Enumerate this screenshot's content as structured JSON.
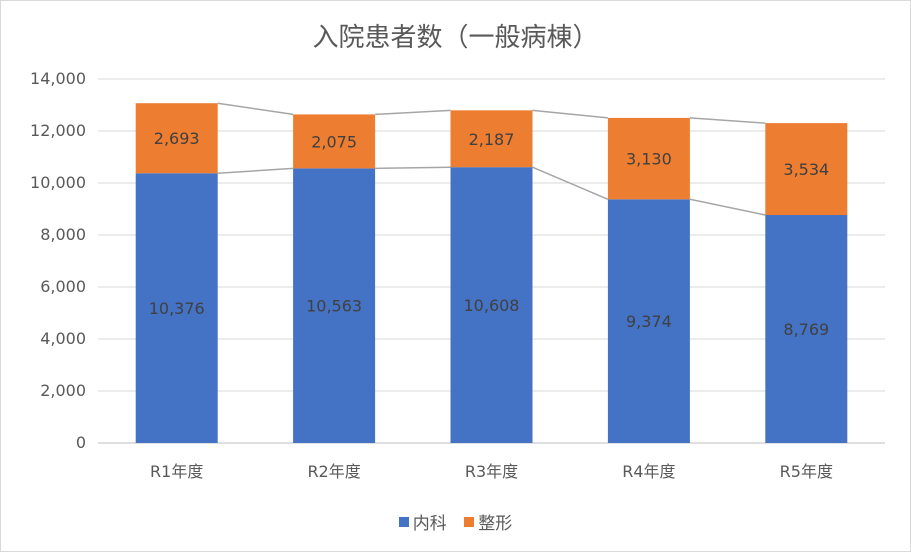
{
  "chart_data": {
    "type": "bar",
    "stacked": true,
    "title": "入院患者数（一般病棟）",
    "categories": [
      "R1年度",
      "R2年度",
      "R3年度",
      "R4年度",
      "R5年度"
    ],
    "series": [
      {
        "name": "内科",
        "values": [
          10376,
          10563,
          10608,
          9374,
          8769
        ],
        "labels": [
          "10,376",
          "10,563",
          "10,608",
          "9,374",
          "8,769"
        ],
        "color": "#4472c4"
      },
      {
        "name": "整形",
        "values": [
          2693,
          2075,
          2187,
          3130,
          3534
        ],
        "labels": [
          "2,693",
          "2,075",
          "2,187",
          "3,130",
          "3,534"
        ],
        "color": "#ed7d31"
      }
    ],
    "ylim": [
      0,
      14000
    ],
    "yticks": [
      0,
      2000,
      4000,
      6000,
      8000,
      10000,
      12000,
      14000
    ],
    "ytick_labels": [
      "0",
      "2,000",
      "4,000",
      "6,000",
      "8,000",
      "10,000",
      "12,000",
      "14,000"
    ],
    "grid": true,
    "series_lines": true,
    "legend_position": "bottom"
  }
}
